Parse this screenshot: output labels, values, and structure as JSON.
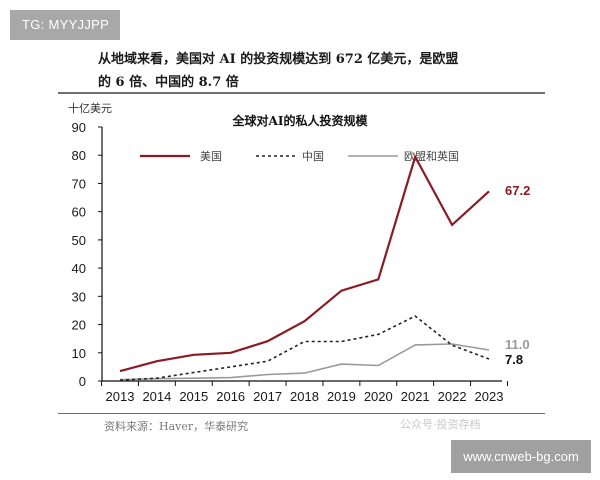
{
  "badges": {
    "tg": "TG: MYYJJPP",
    "site": "www.cnweb-bg.com"
  },
  "headline": {
    "line1": "从地域来看，美国对 AI 的投资规模达到 672 亿美元，是欧盟",
    "line2": "的 6 倍、中国的 8.7 倍"
  },
  "source": "资料来源：Haver，华泰研究",
  "watermark": "公众号·投资存档",
  "colors": {
    "us": "#8b1a24",
    "china": "#222222",
    "eu_uk": "#9a9a9a"
  },
  "chart_data": {
    "type": "line",
    "title": "全球对AI的私人投资规模",
    "xlabel": "",
    "ylabel": "十亿美元",
    "ylim": [
      0,
      90
    ],
    "yticks": [
      0,
      10,
      20,
      30,
      40,
      50,
      60,
      70,
      80,
      90
    ],
    "grid": false,
    "legend_position": "top",
    "categories": [
      "2013",
      "2014",
      "2015",
      "2016",
      "2017",
      "2018",
      "2019",
      "2020",
      "2021",
      "2022",
      "2023"
    ],
    "series": [
      {
        "name": "美国",
        "style": "solid",
        "color": "#8b1a24",
        "values": [
          3.5,
          7.0,
          9.3,
          10.0,
          14.1,
          21.2,
          32.0,
          36.0,
          79.4,
          55.3,
          67.2
        ]
      },
      {
        "name": "中国",
        "style": "dashed",
        "color": "#222222",
        "values": [
          0.3,
          1.0,
          3.0,
          5.0,
          7.0,
          14.0,
          14.0,
          16.5,
          23.0,
          12.7,
          7.8
        ]
      },
      {
        "name": "欧盟和英国",
        "style": "solid",
        "color": "#9a9a9a",
        "values": [
          0.5,
          0.8,
          1.0,
          1.2,
          2.3,
          2.8,
          6.0,
          5.5,
          12.8,
          13.1,
          11.0
        ]
      }
    ],
    "annotations": [
      {
        "series": "美国",
        "text": "67.2"
      },
      {
        "series": "欧盟和英国",
        "text": "11.0"
      },
      {
        "series": "中国",
        "text": "7.8"
      }
    ]
  }
}
